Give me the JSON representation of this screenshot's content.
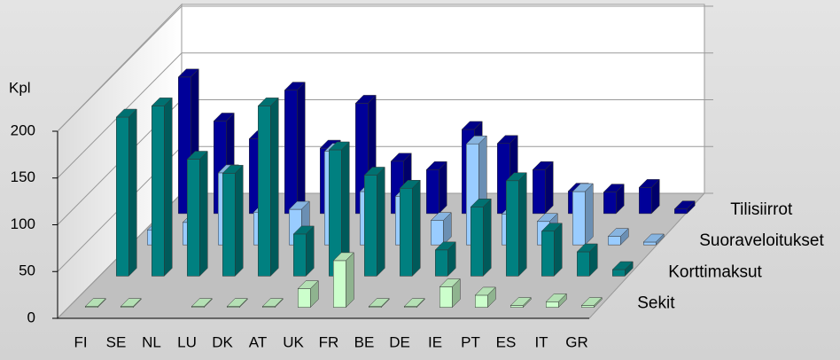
{
  "chart_data": {
    "type": "bar3d",
    "y_label": "Kpl",
    "categories": [
      "FI",
      "SE",
      "NL",
      "LU",
      "DK",
      "AT",
      "UK",
      "FR",
      "BE",
      "DE",
      "IE",
      "PT",
      "ES",
      "IT",
      "GR"
    ],
    "series": [
      {
        "name": "Sekit",
        "color": "#ccffcc",
        "values": [
          1,
          1,
          null,
          1,
          1,
          1,
          20,
          50,
          1,
          1,
          22,
          13,
          2,
          6,
          2
        ]
      },
      {
        "name": "Korttimaksut",
        "color": "#008080",
        "values": [
          170,
          182,
          125,
          110,
          182,
          45,
          135,
          108,
          94,
          28,
          74,
          102,
          48,
          26,
          7
        ]
      },
      {
        "name": "Suoraveloitukset",
        "color": "#99ccff",
        "values": [
          16,
          24,
          77,
          35,
          38,
          100,
          57,
          52,
          26,
          108,
          33,
          25,
          57,
          9,
          3
        ]
      },
      {
        "name": "Tilisiirrot",
        "color": "#000099",
        "values": [
          146,
          99,
          80,
          132,
          70,
          118,
          56,
          47,
          90,
          75,
          47,
          24,
          23,
          28,
          5
        ]
      }
    ],
    "ylim": [
      0,
      200
    ],
    "yticks": [
      0,
      50,
      100,
      150,
      200
    ],
    "grid": true
  }
}
